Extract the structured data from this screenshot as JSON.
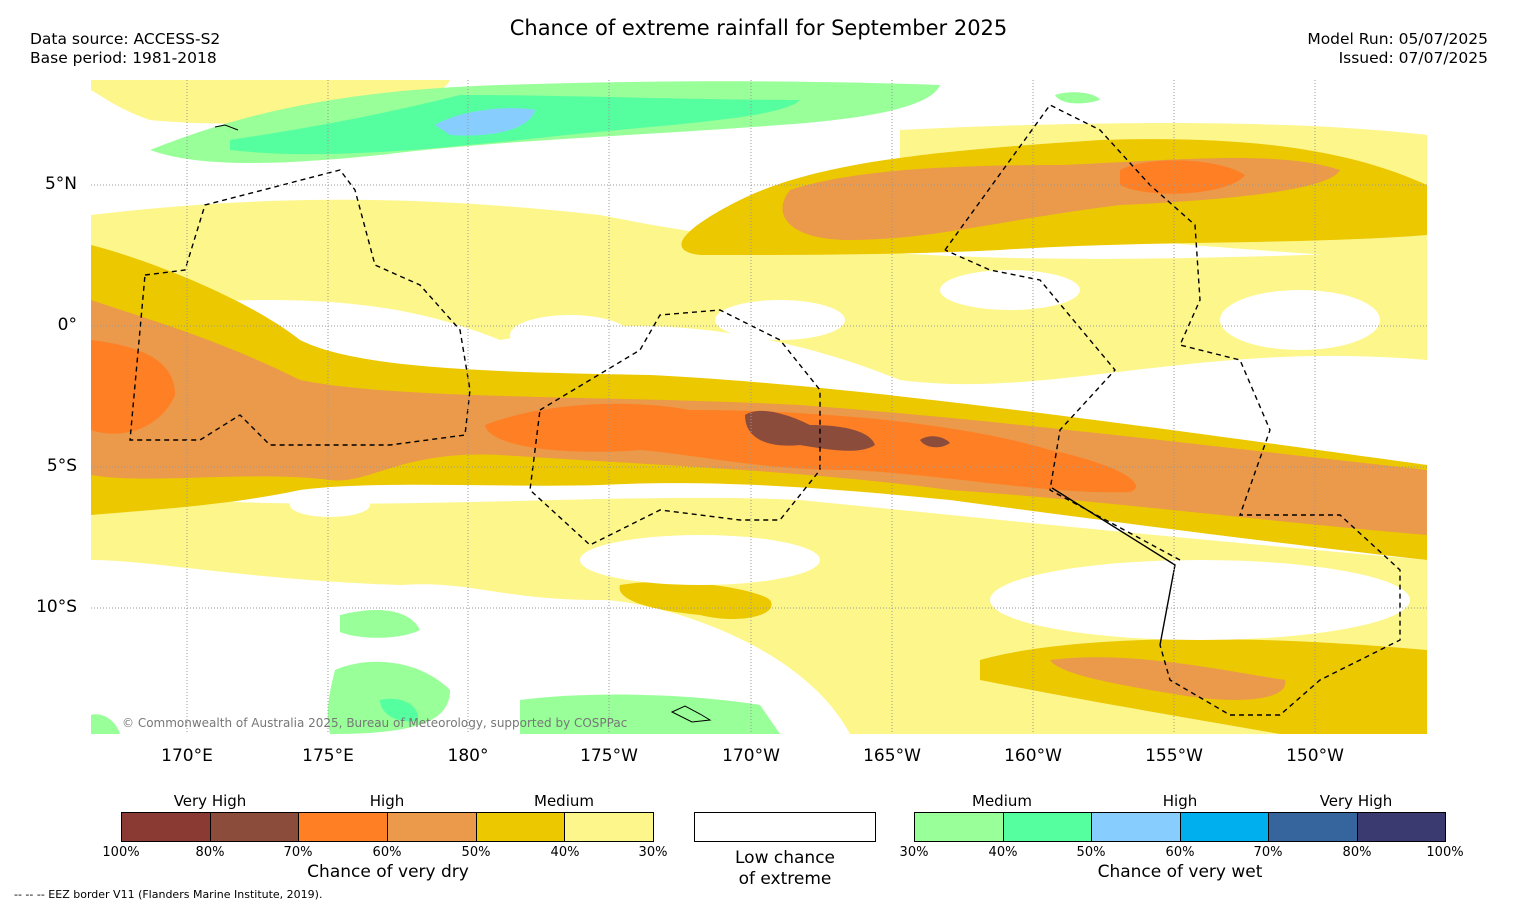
{
  "header": {
    "title": "Chance of extreme rainfall for September 2025",
    "data_source": "Data source: ACCESS-S2",
    "base_period": "Base period: 1981-2018",
    "model_run": "Model Run: 05/07/2025",
    "issued": "Issued: 07/07/2025"
  },
  "map": {
    "lat_labels": [
      "5°N",
      "0°",
      "5°S",
      "10°S"
    ],
    "lon_labels": [
      "170°E",
      "175°E",
      "180°",
      "175°W",
      "170°W",
      "165°W",
      "160°W",
      "155°W",
      "150°W"
    ],
    "copyright": "© Commonwealth of Australia 2025, Bureau of Meteorology, supported by COSPPac",
    "colors": {
      "dry_100": "#8b3a33",
      "dry_80": "#8b4c3c",
      "dry_70": "#ff7f24",
      "dry_60": "#ea9a4a",
      "dry_50": "#ecc800",
      "dry_40": "#fdf68b",
      "wet_30": "#99ff99",
      "wet_40": "#55ff9f",
      "wet_50": "#87ceff",
      "wet_60": "#00b0ee",
      "wet_70": "#36649c",
      "wet_80": "#3a3a70"
    }
  },
  "legend": {
    "dry": {
      "groups": [
        "Very High",
        "High",
        "Medium"
      ],
      "ticks": [
        "100%",
        "80%",
        "70%",
        "60%",
        "50%",
        "40%",
        "30%"
      ],
      "caption": "Chance of very dry"
    },
    "neutral": {
      "line1": "Low chance",
      "line2": "of extreme"
    },
    "wet": {
      "groups": [
        "Medium",
        "High",
        "Very High"
      ],
      "ticks": [
        "30%",
        "40%",
        "50%",
        "60%",
        "70%",
        "80%",
        "100%"
      ],
      "caption": "Chance of very wet"
    }
  },
  "footer": {
    "eez": "--  --  -- EEZ border V11 (Flanders Marine Institute, 2019)."
  }
}
